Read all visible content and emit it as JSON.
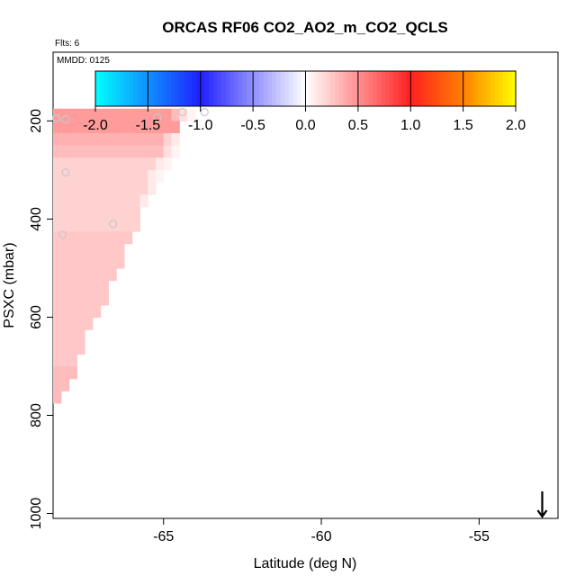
{
  "chart_data": {
    "type": "heatmap",
    "title": "ORCAS RF06 CO2_AO2_m_CO2_QCLS",
    "annotations": [
      "Flts: 6",
      "MMDD: 0125"
    ],
    "xlabel": "Latitude (deg N)",
    "ylabel": "PSXC (mbar)",
    "xlim": [
      -68.5,
      -52.5
    ],
    "ylim": [
      1010,
      60
    ],
    "x_ticks": [
      -65,
      -60,
      -55
    ],
    "x_tick_labels": [
      "-65",
      "-60",
      "-55"
    ],
    "y_ticks": [
      200,
      400,
      600,
      800,
      1000
    ],
    "y_tick_labels": [
      "200",
      "400",
      "600",
      "800",
      "1000"
    ],
    "colorbar": {
      "range": [
        -2.0,
        2.0
      ],
      "ticks": [
        -2.0,
        -1.5,
        -1.0,
        -0.5,
        0.0,
        0.5,
        1.0,
        1.5,
        2.0
      ],
      "tick_labels": [
        "-2.0",
        "-1.5",
        "-1.0",
        "-0.5",
        "0.0",
        "0.5",
        "1.0",
        "1.5",
        "2.0"
      ],
      "colors": {
        "cyan": "#00ffff",
        "blue": "#2020ff",
        "white": "#ffffff",
        "red": "#ff2020",
        "orange": "#ff8000",
        "yellow": "#ffff00"
      }
    },
    "cell_lat_width": 0.25,
    "cell_press_height": 25,
    "rows": [
      {
        "p_top": 175,
        "lat_end": -64.0,
        "value": 0.45,
        "fade": [
          0.3,
          0.15,
          0.05
        ]
      },
      {
        "p_top": 200,
        "lat_end": -64.5,
        "value": 0.45
      },
      {
        "p_top": 225,
        "lat_end": -64.5,
        "value": 0.35,
        "fade": [
          0.2,
          0.1
        ]
      },
      {
        "p_top": 250,
        "lat_end": -64.5,
        "value": 0.3,
        "fade": [
          0.15,
          0.05
        ]
      },
      {
        "p_top": 275,
        "lat_end": -64.75,
        "value": 0.2,
        "fade": [
          0.1,
          0.05
        ]
      },
      {
        "p_top": 300,
        "lat_end": -65.0,
        "value": 0.2,
        "fade": [
          0.1,
          0.05
        ]
      },
      {
        "p_top": 325,
        "lat_end": -65.25,
        "value": 0.2,
        "fade": [
          0.1
        ]
      },
      {
        "p_top": 350,
        "lat_end": -65.5,
        "value": 0.2,
        "fade": [
          0.1
        ]
      },
      {
        "p_top": 375,
        "lat_end": -65.75,
        "value": 0.2
      },
      {
        "p_top": 400,
        "lat_end": -65.75,
        "value": 0.2
      },
      {
        "p_top": 425,
        "lat_end": -66.0,
        "value": 0.25
      },
      {
        "p_top": 450,
        "lat_end": -66.25,
        "value": 0.25
      },
      {
        "p_top": 475,
        "lat_end": -66.25,
        "value": 0.25
      },
      {
        "p_top": 500,
        "lat_end": -66.5,
        "value": 0.25
      },
      {
        "p_top": 525,
        "lat_end": -66.75,
        "value": 0.25
      },
      {
        "p_top": 550,
        "lat_end": -66.75,
        "value": 0.25
      },
      {
        "p_top": 575,
        "lat_end": -67.0,
        "value": 0.25
      },
      {
        "p_top": 600,
        "lat_end": -67.25,
        "value": 0.25
      },
      {
        "p_top": 625,
        "lat_end": -67.5,
        "value": 0.25
      },
      {
        "p_top": 650,
        "lat_end": -67.5,
        "value": 0.25
      },
      {
        "p_top": 675,
        "lat_end": -67.75,
        "value": 0.25
      },
      {
        "p_top": 700,
        "lat_end": -67.75,
        "value": 0.3
      },
      {
        "p_top": 725,
        "lat_end": -68.0,
        "value": 0.3
      },
      {
        "p_top": 750,
        "lat_end": -68.25,
        "value": 0.3
      }
    ],
    "markers": [
      {
        "lat": -68.4,
        "p": 195
      },
      {
        "lat": -68.1,
        "p": 197
      },
      {
        "lat": -65.2,
        "p": 193
      },
      {
        "lat": -64.4,
        "p": 182
      },
      {
        "lat": -63.7,
        "p": 182
      },
      {
        "lat": -68.1,
        "p": 305
      },
      {
        "lat": -66.6,
        "p": 410
      },
      {
        "lat": -68.2,
        "p": 432
      }
    ],
    "arrow": {
      "lat": -53.0,
      "p_from": 955,
      "p_to": 1010
    }
  }
}
